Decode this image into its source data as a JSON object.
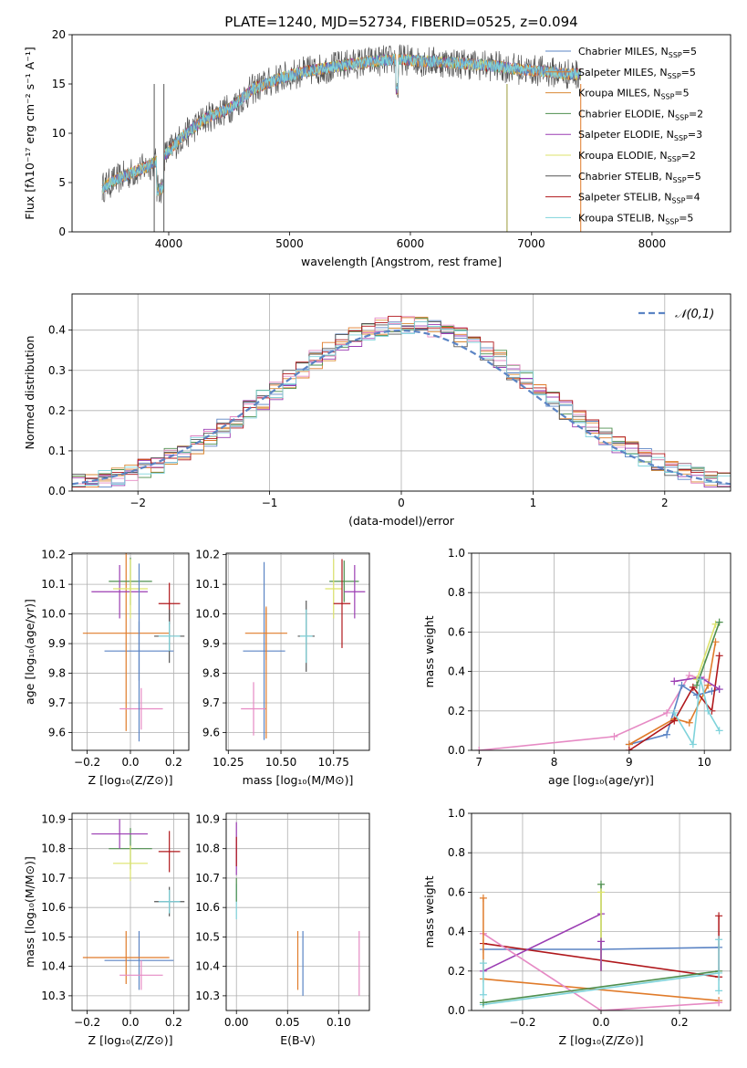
{
  "title": "PLATE=1240, MJD=52734, FIBERID=0525, z=0.094",
  "models": [
    {
      "name": "Chabrier MILES",
      "nssp": "5",
      "color": "#5b84c4"
    },
    {
      "name": "Salpeter MILES",
      "nssp": "5",
      "color": "#e07b2a"
    },
    {
      "name": "Kroupa MILES",
      "nssp": "5",
      "color": "#d98a35"
    },
    {
      "name": "Chabrier ELODIE",
      "nssp": "2",
      "color": "#4e8f4e"
    },
    {
      "name": "Salpeter ELODIE",
      "nssp": "3",
      "color": "#9b3db3"
    },
    {
      "name": "Kroupa ELODIE",
      "nssp": "2",
      "color": "#dde36b"
    },
    {
      "name": "Chabrier STELIB",
      "nssp": "5",
      "color": "#555555"
    },
    {
      "name": "Salpeter STELIB",
      "nssp": "4",
      "color": "#b0181c"
    },
    {
      "name": "Kroupa STELIB",
      "nssp": "5",
      "color": "#7fd3db"
    }
  ],
  "chart_data": [
    {
      "id": "spectrum",
      "type": "line",
      "xlabel": "wavelength [Angstrom, rest frame]",
      "ylabel": "Flux [fλ10⁻¹⁷ erg cm⁻² s⁻¹ A⁻¹]",
      "xlim": [
        3200,
        8650
      ],
      "ylim": [
        0,
        20
      ],
      "xticks": [
        4000,
        5000,
        6000,
        7000,
        8000
      ],
      "yticks": [
        0,
        5,
        10,
        15,
        20
      ],
      "x": [
        3450,
        3600,
        3800,
        3950,
        4100,
        4300,
        4500,
        4700,
        4900,
        5100,
        5300,
        5500,
        5700,
        5900,
        6100,
        6300,
        6500,
        6700,
        6900,
        7100,
        7300,
        7410
      ],
      "y": [
        4.5,
        5.5,
        6.5,
        7.5,
        9.5,
        11.5,
        12.5,
        14.5,
        15.5,
        16.2,
        16.6,
        17.0,
        17.3,
        17.5,
        17.3,
        17.2,
        17.0,
        16.8,
        16.5,
        16.3,
        16.0,
        16.0
      ]
    },
    {
      "id": "residuals",
      "type": "step",
      "xlabel": "(data-model)/error",
      "ylabel": "Normed distribution",
      "xlim": [
        -2.5,
        2.5
      ],
      "ylim": [
        0,
        0.49
      ],
      "xticks": [
        -2,
        -1,
        0,
        1,
        2
      ],
      "yticks": [
        0.0,
        0.1,
        0.2,
        0.3,
        0.4
      ],
      "legend": "𝒩(0,1)",
      "bin_edges_start": -2.5,
      "bin_width": 0.1,
      "normal": {
        "mean": 0,
        "sigma": 1
      }
    },
    {
      "id": "age_vs_Z",
      "type": "errorbar",
      "xlabel": "Z [log₁₀(Z/Z⊙)]",
      "ylabel": "age  [log₁₀(age/yr)]",
      "xlim": [
        -0.27,
        0.27
      ],
      "ylim": [
        9.54,
        10.205
      ],
      "xticks": [
        -0.2,
        0.0,
        0.2
      ],
      "yticks": [
        9.6,
        9.7,
        9.8,
        9.9,
        10.0,
        10.1,
        10.2
      ],
      "points": [
        {
          "x": 0.04,
          "y": 9.875,
          "xerr": 0.16,
          "yerr": 0.1,
          "color": "#5b84c4"
        },
        {
          "x": -0.02,
          "y": 9.935,
          "xerr": 0.2,
          "yerr": 0.33,
          "color": "#e07b2a"
        },
        {
          "x": 0.0,
          "y": 10.11,
          "xerr": 0.1,
          "yerr": 0.08,
          "color": "#4e8f4e"
        },
        {
          "x": -0.05,
          "y": 10.075,
          "xerr": 0.13,
          "yerr": 0.09,
          "color": "#9b3db3"
        },
        {
          "x": 0.0,
          "y": 10.085,
          "xerr": 0.08,
          "yerr": 0.1,
          "color": "#dde36b"
        },
        {
          "x": 0.18,
          "y": 10.035,
          "xerr": 0.05,
          "yerr": 0.07,
          "color": "#b0181c"
        },
        {
          "x": 0.18,
          "y": 9.925,
          "xerr": 0.07,
          "yerr": 0.09,
          "color": "#555555"
        },
        {
          "x": 0.18,
          "y": 9.925,
          "xerr": 0.05,
          "yerr": 0.05,
          "color": "#7fd3db"
        },
        {
          "x": 0.05,
          "y": 9.68,
          "xerr": 0.1,
          "yerr": 0.07,
          "color": "#e68ac4"
        },
        {
          "x": 0.04,
          "y": 9.87,
          "xerr": 0.0,
          "yerr": 0.3,
          "color": "#5b84c4"
        }
      ]
    },
    {
      "id": "age_vs_mass",
      "type": "errorbar",
      "xlabel": "mass [log₁₀(M/M⊙)]",
      "ylabel": "",
      "xlim": [
        10.24,
        10.92
      ],
      "ylim": [
        9.54,
        10.205
      ],
      "xticks": [
        10.25,
        10.5,
        10.75
      ],
      "yticks": [
        9.6,
        9.7,
        9.8,
        9.9,
        10.0,
        10.1,
        10.2
      ],
      "points": [
        {
          "x": 10.42,
          "y": 9.875,
          "xerr": 0.1,
          "yerr": 0.3,
          "color": "#5b84c4"
        },
        {
          "x": 10.43,
          "y": 9.935,
          "xerr": 0.1,
          "yerr": 0.09,
          "color": "#e07b2a"
        },
        {
          "x": 10.8,
          "y": 10.11,
          "xerr": 0.07,
          "yerr": 0.07,
          "color": "#4e8f4e"
        },
        {
          "x": 10.85,
          "y": 10.075,
          "xerr": 0.05,
          "yerr": 0.09,
          "color": "#9b3db3"
        },
        {
          "x": 10.75,
          "y": 10.085,
          "xerr": 0.04,
          "yerr": 0.1,
          "color": "#dde36b"
        },
        {
          "x": 10.79,
          "y": 10.035,
          "xerr": 0.04,
          "yerr": 0.15,
          "color": "#b0181c"
        },
        {
          "x": 10.62,
          "y": 9.925,
          "xerr": 0.04,
          "yerr": 0.12,
          "color": "#555555"
        },
        {
          "x": 10.62,
          "y": 9.925,
          "xerr": 0.03,
          "yerr": 0.09,
          "color": "#7fd3db"
        },
        {
          "x": 10.37,
          "y": 9.68,
          "xerr": 0.06,
          "yerr": 0.09,
          "color": "#e68ac4"
        },
        {
          "x": 10.43,
          "y": 9.8,
          "xerr": 0.0,
          "yerr": 0.22,
          "color": "#e07b2a"
        }
      ]
    },
    {
      "id": "weight_vs_age",
      "type": "line",
      "xlabel": "age  [log₁₀(age/yr)]",
      "ylabel": "mass weight",
      "xlim": [
        6.9,
        10.35
      ],
      "ylim": [
        0,
        1
      ],
      "xticks": [
        7,
        8,
        9,
        10
      ],
      "yticks": [
        0.0,
        0.2,
        0.4,
        0.6,
        0.8,
        1.0
      ],
      "series": [
        {
          "color": "#e68ac4",
          "x": [
            7.0,
            8.8,
            9.5,
            9.8,
            10.0
          ],
          "y": [
            0.0,
            0.07,
            0.19,
            0.38,
            0.36
          ]
        },
        {
          "color": "#5b84c4",
          "x": [
            9.0,
            9.5,
            9.7,
            9.9,
            10.1,
            10.2
          ],
          "y": [
            0.03,
            0.08,
            0.33,
            0.28,
            0.3,
            0.31
          ]
        },
        {
          "color": "#e07b2a",
          "x": [
            9.0,
            9.6,
            9.8,
            10.05,
            10.15
          ],
          "y": [
            0.03,
            0.16,
            0.14,
            0.33,
            0.55
          ]
        },
        {
          "color": "#b0181c",
          "x": [
            9.0,
            9.6,
            9.85,
            10.1,
            10.2
          ],
          "y": [
            0.0,
            0.15,
            0.32,
            0.2,
            0.48
          ]
        },
        {
          "color": "#9b3db3",
          "x": [
            9.6,
            9.95,
            10.2
          ],
          "y": [
            0.35,
            0.37,
            0.31
          ]
        },
        {
          "color": "#dde36b",
          "x": [
            9.9,
            10.15
          ],
          "y": [
            0.36,
            0.64
          ]
        },
        {
          "color": "#4e8f4e",
          "x": [
            9.9,
            10.2
          ],
          "y": [
            0.33,
            0.65
          ]
        },
        {
          "color": "#7fd3db",
          "x": [
            9.6,
            9.85,
            9.95,
            10.05,
            10.2
          ],
          "y": [
            0.19,
            0.03,
            0.36,
            0.2,
            0.1
          ]
        }
      ]
    },
    {
      "id": "mass_vs_Z",
      "type": "errorbar",
      "xlabel": "Z [log₁₀(Z/Z⊙)]",
      "ylabel": "mass [log₁₀(M/M⊙)]",
      "xlim": [
        -0.27,
        0.27
      ],
      "ylim": [
        10.25,
        10.92
      ],
      "xticks": [
        -0.2,
        0.0,
        0.2
      ],
      "yticks": [
        10.3,
        10.4,
        10.5,
        10.6,
        10.7,
        10.8,
        10.9
      ],
      "points": [
        {
          "x": 0.04,
          "y": 10.42,
          "xerr": 0.16,
          "yerr": 0.1,
          "color": "#5b84c4"
        },
        {
          "x": -0.02,
          "y": 10.43,
          "xerr": 0.2,
          "yerr": 0.09,
          "color": "#e07b2a"
        },
        {
          "x": 0.0,
          "y": 10.8,
          "xerr": 0.1,
          "yerr": 0.07,
          "color": "#4e8f4e"
        },
        {
          "x": -0.05,
          "y": 10.85,
          "xerr": 0.13,
          "yerr": 0.05,
          "color": "#9b3db3"
        },
        {
          "x": 0.0,
          "y": 10.75,
          "xerr": 0.08,
          "yerr": 0.06,
          "color": "#dde36b"
        },
        {
          "x": 0.18,
          "y": 10.79,
          "xerr": 0.05,
          "yerr": 0.07,
          "color": "#b0181c"
        },
        {
          "x": 0.18,
          "y": 10.62,
          "xerr": 0.07,
          "yerr": 0.05,
          "color": "#555555"
        },
        {
          "x": 0.18,
          "y": 10.62,
          "xerr": 0.05,
          "yerr": 0.04,
          "color": "#7fd3db"
        },
        {
          "x": 0.05,
          "y": 10.37,
          "xerr": 0.1,
          "yerr": 0.05,
          "color": "#e68ac4"
        }
      ]
    },
    {
      "id": "mass_vs_EBV",
      "type": "errorbar",
      "xlabel": "E(B-V)",
      "ylabel": "",
      "xlim": [
        -0.01,
        0.13
      ],
      "ylim": [
        10.25,
        10.92
      ],
      "xticks": [
        0.0,
        0.05,
        0.1
      ],
      "yticks": [
        10.3,
        10.4,
        10.5,
        10.6,
        10.7,
        10.8,
        10.9
      ],
      "points": [
        {
          "x": 0.0,
          "y": 10.8,
          "xerr": 0.0,
          "yerr": 0.09,
          "color": "#9b3db3"
        },
        {
          "x": 0.0,
          "y": 10.79,
          "xerr": 0.0,
          "yerr": 0.05,
          "color": "#b0181c"
        },
        {
          "x": 0.0,
          "y": 10.62,
          "xerr": 0.0,
          "yerr": 0.06,
          "color": "#7fd3db"
        },
        {
          "x": 0.0,
          "y": 10.66,
          "xerr": 0.0,
          "yerr": 0.04,
          "color": "#4e8f4e"
        },
        {
          "x": 0.06,
          "y": 10.42,
          "xerr": 0.0,
          "yerr": 0.1,
          "color": "#e07b2a"
        },
        {
          "x": 0.065,
          "y": 10.41,
          "xerr": 0.0,
          "yerr": 0.11,
          "color": "#5b84c4"
        },
        {
          "x": 0.12,
          "y": 10.41,
          "xerr": 0.0,
          "yerr": 0.11,
          "color": "#e68ac4"
        }
      ]
    },
    {
      "id": "weight_vs_Z",
      "type": "line",
      "xlabel": "Z [log₁₀(Z/Z⊙)]",
      "ylabel": "mass weight",
      "xlim": [
        -0.33,
        0.33
      ],
      "ylim": [
        0,
        1
      ],
      "xticks": [
        -0.2,
        0.0,
        0.2
      ],
      "yticks": [
        0.0,
        0.2,
        0.4,
        0.6,
        0.8,
        1.0
      ],
      "series": [
        {
          "color": "#5b84c4",
          "x": [
            -0.3,
            0.0,
            0.3
          ],
          "y": [
            0.31,
            0.31,
            0.32
          ]
        },
        {
          "color": "#e07b2a",
          "x": [
            -0.3,
            0.3
          ],
          "y": [
            0.16,
            0.05
          ]
        },
        {
          "color": "#b0181c",
          "x": [
            -0.3,
            0.3
          ],
          "y": [
            0.34,
            0.17
          ]
        },
        {
          "color": "#9b3db3",
          "x": [
            -0.3,
            0.0
          ],
          "y": [
            0.2,
            0.49
          ]
        },
        {
          "color": "#e68ac4",
          "x": [
            -0.3,
            0.0,
            0.3
          ],
          "y": [
            0.39,
            0.0,
            0.04
          ]
        },
        {
          "color": "#7fd3db",
          "x": [
            -0.3,
            0.3
          ],
          "y": [
            0.03,
            0.19
          ]
        },
        {
          "color": "#4e8f4e",
          "x": [
            -0.3,
            0.3
          ],
          "y": [
            0.04,
            0.2
          ]
        }
      ],
      "markers": [
        {
          "x": -0.3,
          "y": 0.57,
          "color": "#e07b2a"
        },
        {
          "x": -0.3,
          "y": 0.24,
          "color": "#7fd3db"
        },
        {
          "x": -0.3,
          "y": 0.08,
          "color": "#7fd3db"
        },
        {
          "x": 0.0,
          "y": 0.64,
          "color": "#4e8f4e"
        },
        {
          "x": 0.0,
          "y": 0.6,
          "color": "#dde36b"
        },
        {
          "x": 0.0,
          "y": 0.35,
          "color": "#9b3db3"
        },
        {
          "x": 0.3,
          "y": 0.48,
          "color": "#b0181c"
        },
        {
          "x": 0.3,
          "y": 0.36,
          "color": "#7fd3db"
        },
        {
          "x": 0.3,
          "y": 0.1,
          "color": "#7fd3db"
        }
      ]
    }
  ]
}
